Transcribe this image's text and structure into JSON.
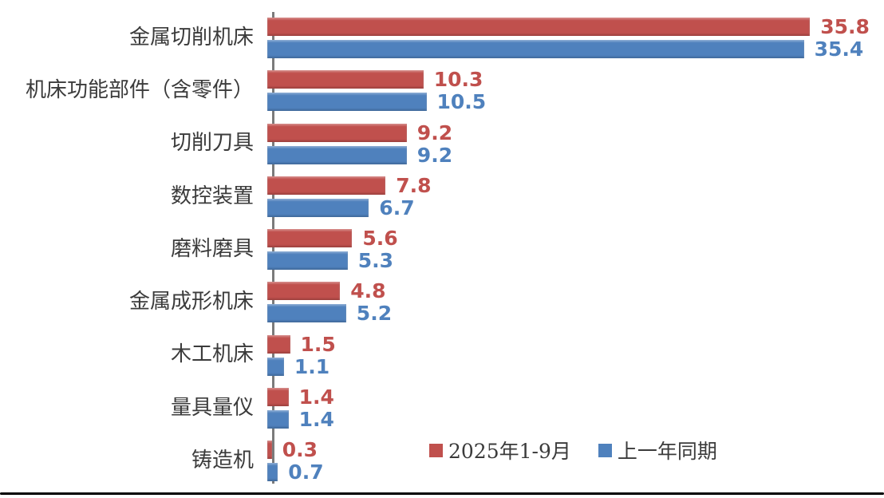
{
  "chart_data": {
    "type": "bar",
    "orientation": "horizontal",
    "title": "",
    "xlabel": "",
    "ylabel": "",
    "categories": [
      "金属切削机床",
      "机床功能部件（含零件）",
      "切削刀具",
      "数控装置",
      "磨料磨具",
      "金属成形机床",
      "木工机床",
      "量具量仪",
      "铸造机"
    ],
    "series": [
      {
        "name": "2025年1-9月",
        "color": "#c0504d",
        "values": [
          35.8,
          10.3,
          9.2,
          7.8,
          5.6,
          4.8,
          1.5,
          1.4,
          0.3
        ]
      },
      {
        "name": "上一年同期",
        "color": "#4f81bd",
        "values": [
          35.4,
          10.5,
          9.2,
          6.7,
          5.3,
          5.2,
          1.1,
          1.4,
          0.7
        ]
      }
    ],
    "xlim": [
      0,
      40
    ],
    "value_labels": true,
    "grid": false,
    "legend_position": "bottom-inside",
    "axis_color": "#7b7b7b",
    "category_label_color": "#3b3b3b"
  }
}
